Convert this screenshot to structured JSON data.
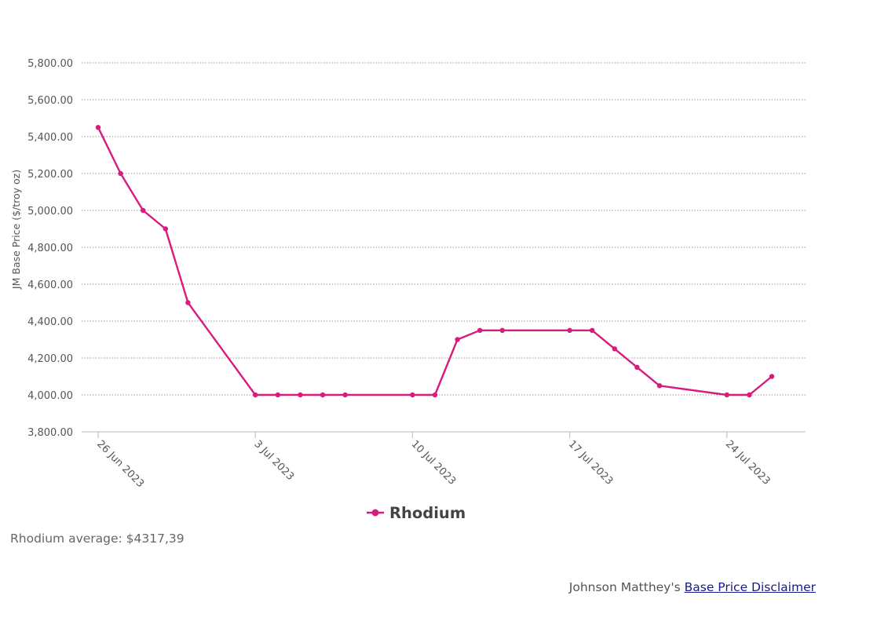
{
  "chart_data": {
    "type": "line",
    "ylabel": "JM Base Price ($/troy oz)",
    "ylim": [
      3800,
      5800
    ],
    "yticks": [
      3800,
      4000,
      4200,
      4400,
      4600,
      4800,
      5000,
      5200,
      5400,
      5600,
      5800
    ],
    "ytick_labels": [
      "3,800.00",
      "4,000.00",
      "4,200.00",
      "4,400.00",
      "4,600.00",
      "4,800.00",
      "5,000.00",
      "5,200.00",
      "5,400.00",
      "5,600.00",
      "5,800.00"
    ],
    "xlim": [
      "2023-06-26",
      "2023-07-28"
    ],
    "xticks": [
      "2023-06-26",
      "2023-07-03",
      "2023-07-10",
      "2023-07-17",
      "2023-07-24"
    ],
    "xtick_labels": [
      "26 Jun 2023",
      "3 Jul 2023",
      "10 Jul 2023",
      "17 Jul 2023",
      "24 Jul 2023"
    ],
    "grid": true,
    "legend": "bottom-center",
    "series": [
      {
        "name": "Rhodium",
        "color": "#d81b7d",
        "x": [
          "2023-06-26",
          "2023-06-27",
          "2023-06-28",
          "2023-06-29",
          "2023-06-30",
          "2023-07-03",
          "2023-07-04",
          "2023-07-05",
          "2023-07-06",
          "2023-07-07",
          "2023-07-10",
          "2023-07-11",
          "2023-07-12",
          "2023-07-13",
          "2023-07-14",
          "2023-07-17",
          "2023-07-18",
          "2023-07-19",
          "2023-07-20",
          "2023-07-21",
          "2023-07-24",
          "2023-07-25",
          "2023-07-26"
        ],
        "values": [
          5450,
          5200,
          5000,
          4900,
          4500,
          4000,
          4000,
          4000,
          4000,
          4000,
          4000,
          4000,
          4300,
          4350,
          4350,
          4350,
          4350,
          4250,
          4150,
          4050,
          4000,
          4000,
          4100
        ]
      }
    ]
  },
  "summary": {
    "average_text": "Rhodium average: $4317,39"
  },
  "footer": {
    "prefix": "Johnson Matthey's ",
    "link_text": "Base Price Disclaimer"
  }
}
